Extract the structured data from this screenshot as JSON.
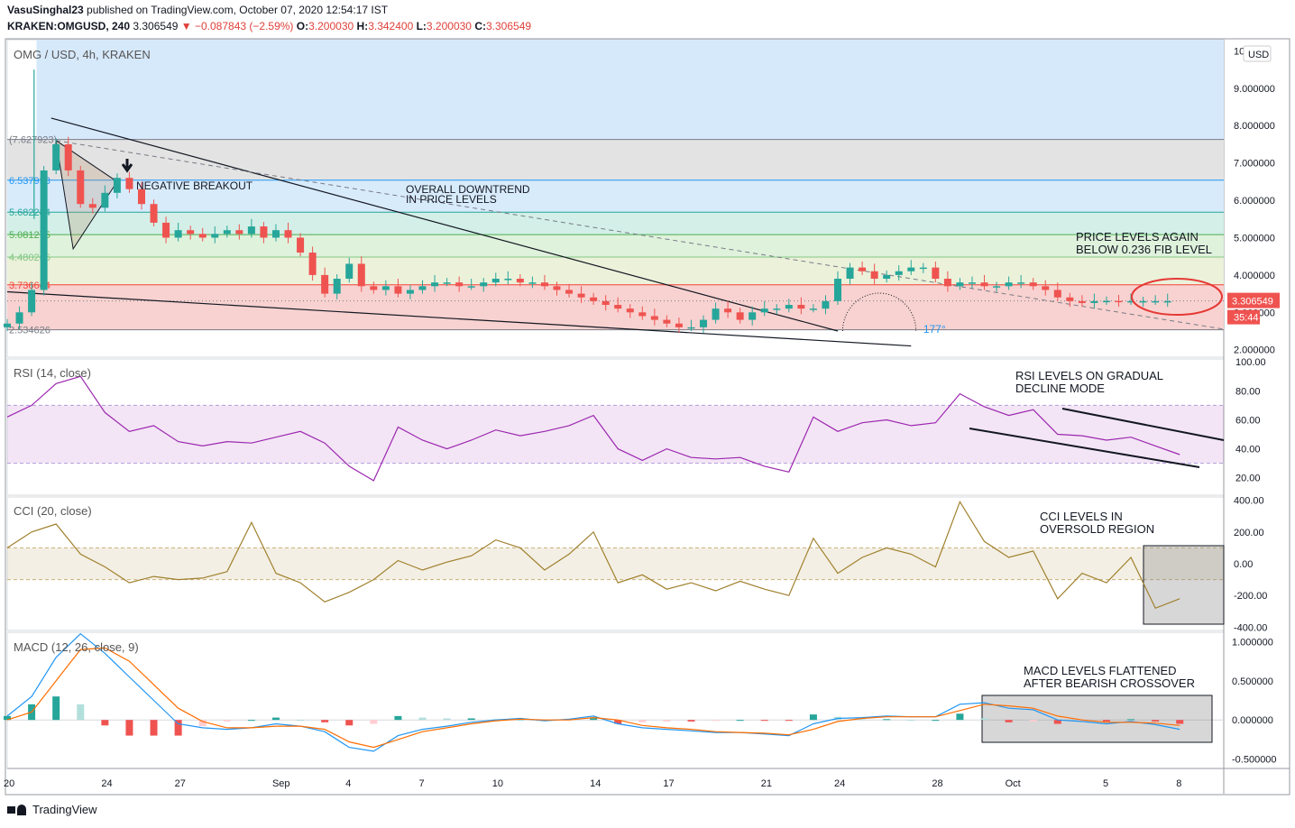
{
  "header": {
    "user": "VasuSinghal23",
    "published": "published on TradingView.com, October 07, 2020 12:54:17 IST",
    "symbol": "KRAKEN:OMGUSD, 240",
    "last": "3.306549",
    "change": "▼ −0.087843 (−2.59%)",
    "o_label": "O:",
    "o": "3.200030",
    "h_label": "H:",
    "h": "3.342400",
    "l_label": "L:",
    "l": "3.200030",
    "c_label": "C:",
    "c": "3.306549"
  },
  "footer": {
    "brand": "TradingView"
  },
  "colors": {
    "up": "#26a69a",
    "down": "#ef5350",
    "rsi": "#9c27b0",
    "cci": "#a0802d",
    "macd": "#2196f3",
    "signal": "#ff6d00",
    "annot": "#e53935"
  },
  "chart_data": [
    {
      "type": "line",
      "title": "OMG / USD, 4h, KRAKEN",
      "currency": "USD",
      "ylim": [
        1.8,
        10.3
      ],
      "ticks": [
        "10",
        "9.000000",
        "8.000000",
        "7.000000",
        "6.000000",
        "5.000000",
        "4.000000",
        "3.000000",
        "2.000000"
      ],
      "tick_values": [
        10,
        9,
        8,
        7,
        6,
        5,
        4,
        3,
        2
      ],
      "x_labels": [
        "20",
        "24",
        "27",
        "Sep",
        "4",
        "7",
        "10",
        "14",
        "17",
        "21",
        "24",
        "28",
        "Oct",
        "5",
        "8"
      ],
      "x_label_values": [
        0,
        4,
        7,
        11,
        14,
        17,
        20,
        24,
        27,
        31,
        34,
        38,
        41,
        45,
        48
      ],
      "fib_levels": [
        "(7.627923)",
        "6.537958",
        "5.682284",
        "5.081275",
        "4.480266",
        "3.736644",
        "2.534626"
      ],
      "fib_values": [
        7.627923,
        6.537958,
        5.682284,
        5.081275,
        4.480266,
        3.736644,
        2.534626
      ],
      "last_price": "3.306549",
      "countdown": "35:44",
      "angle_label": "177°",
      "x": [
        0,
        0.5,
        1,
        1.5,
        2,
        2.5,
        3,
        3.5,
        4,
        4.5,
        5,
        5.5,
        6,
        6.5,
        7,
        7.5,
        8,
        8.5,
        9,
        9.5,
        10,
        10.5,
        11,
        11.5,
        12,
        12.5,
        13,
        13.5,
        14,
        14.5,
        15,
        15.5,
        16,
        16.5,
        17,
        17.5,
        18,
        18.5,
        19,
        19.5,
        20,
        20.5,
        21,
        21.5,
        22,
        22.5,
        23,
        23.5,
        24,
        24.5,
        25,
        25.5,
        26,
        26.5,
        27,
        27.5,
        28,
        28.5,
        29,
        29.5,
        30,
        30.5,
        31,
        31.5,
        32,
        32.5,
        33,
        33.5,
        34,
        34.5,
        35,
        35.5,
        36,
        36.5,
        37,
        37.5,
        38,
        38.5,
        39,
        39.5,
        40,
        40.5,
        41,
        41.5,
        42,
        42.5,
        43,
        43.5,
        44,
        44.5,
        45,
        45.5,
        46,
        46.5,
        47,
        47.5
      ],
      "close": [
        2.7,
        3.0,
        3.6,
        6.8,
        7.5,
        6.8,
        5.9,
        5.8,
        6.2,
        6.6,
        6.3,
        5.9,
        5.4,
        5.0,
        5.2,
        5.1,
        5.0,
        5.1,
        5.2,
        5.1,
        5.3,
        5.0,
        5.2,
        5.0,
        4.6,
        4.0,
        3.5,
        3.9,
        4.3,
        3.7,
        3.6,
        3.7,
        3.5,
        3.6,
        3.7,
        3.8,
        3.8,
        3.7,
        3.7,
        3.8,
        3.9,
        3.9,
        3.8,
        3.8,
        3.7,
        3.6,
        3.5,
        3.4,
        3.3,
        3.2,
        3.1,
        3.0,
        2.9,
        2.8,
        2.7,
        2.6,
        2.6,
        2.8,
        3.1,
        3.0,
        2.8,
        3.0,
        3.1,
        3.1,
        3.2,
        3.1,
        3.1,
        3.3,
        3.9,
        4.2,
        4.1,
        3.9,
        4.0,
        4.1,
        4.2,
        4.2,
        3.9,
        3.7,
        3.8,
        3.8,
        3.7,
        3.7,
        3.8,
        3.8,
        3.7,
        3.6,
        3.4,
        3.3,
        3.25,
        3.3,
        3.306549,
        3.3,
        3.3,
        3.3,
        3.3,
        3.3
      ]
    },
    {
      "type": "line",
      "title": "RSI (14, close)",
      "ylim": [
        8,
        102
      ],
      "ticks": [
        "100.00",
        "80.00",
        "60.00",
        "40.00",
        "20.00"
      ],
      "tick_values": [
        100,
        80,
        60,
        40,
        20
      ],
      "band": [
        30,
        70
      ],
      "x": [
        0,
        1,
        2,
        3,
        4,
        5,
        6,
        7,
        8,
        9,
        10,
        11,
        12,
        13,
        14,
        15,
        16,
        17,
        18,
        19,
        20,
        21,
        22,
        23,
        24,
        25,
        26,
        27,
        28,
        29,
        30,
        31,
        32,
        33,
        34,
        35,
        36,
        37,
        38,
        39,
        40,
        41,
        42,
        43,
        44,
        45,
        46,
        47,
        48
      ],
      "values": [
        62,
        70,
        85,
        90,
        65,
        52,
        56,
        45,
        42,
        45,
        44,
        48,
        52,
        44,
        28,
        18,
        55,
        46,
        40,
        46,
        53,
        49,
        52,
        56,
        63,
        40,
        32,
        40,
        34,
        33,
        34,
        28,
        24,
        62,
        52,
        58,
        60,
        56,
        58,
        78,
        69,
        63,
        67,
        50,
        49,
        46,
        48,
        42,
        36
      ]
    },
    {
      "type": "line",
      "title": "CCI (20, close)",
      "ylim": [
        -420,
        420
      ],
      "ticks": [
        "400.00",
        "200.00",
        "0.00",
        "-200.00",
        "-400.00"
      ],
      "tick_values": [
        400,
        200,
        0,
        -200,
        -400
      ],
      "band": [
        -100,
        100
      ],
      "x": [
        0,
        1,
        2,
        3,
        4,
        5,
        6,
        7,
        8,
        9,
        10,
        11,
        12,
        13,
        14,
        15,
        16,
        17,
        18,
        19,
        20,
        21,
        22,
        23,
        24,
        25,
        26,
        27,
        28,
        29,
        30,
        31,
        32,
        33,
        34,
        35,
        36,
        37,
        38,
        39,
        40,
        41,
        42,
        43,
        44,
        45,
        46,
        47,
        48
      ],
      "values": [
        100,
        200,
        250,
        60,
        -20,
        -120,
        -80,
        -100,
        -90,
        -50,
        260,
        -60,
        -120,
        -240,
        -180,
        -100,
        20,
        -40,
        10,
        50,
        150,
        100,
        -40,
        60,
        200,
        -120,
        -70,
        -160,
        -120,
        -170,
        -110,
        -160,
        -200,
        160,
        -60,
        40,
        100,
        60,
        -20,
        390,
        140,
        40,
        80,
        -220,
        -60,
        -120,
        40,
        -280,
        -220
      ]
    },
    {
      "type": "bar",
      "title": "MACD (12, 26, close, 9)",
      "ylim": [
        -0.62,
        1.12
      ],
      "ticks": [
        "1.000000",
        "0.500000",
        "0.000000",
        "-0.500000"
      ],
      "tick_values": [
        1.0,
        0.5,
        0.0,
        -0.5
      ],
      "x": [
        0,
        1,
        2,
        3,
        4,
        5,
        6,
        7,
        8,
        9,
        10,
        11,
        12,
        13,
        14,
        15,
        16,
        17,
        18,
        19,
        20,
        21,
        22,
        23,
        24,
        25,
        26,
        27,
        28,
        29,
        30,
        31,
        32,
        33,
        34,
        35,
        36,
        37,
        38,
        39,
        40,
        41,
        42,
        43,
        44,
        45,
        46,
        47,
        48
      ],
      "series": [
        {
          "name": "MACD",
          "values": [
            0.05,
            0.3,
            0.8,
            1.1,
            0.85,
            0.55,
            0.25,
            -0.05,
            -0.1,
            -0.12,
            -0.1,
            -0.05,
            -0.08,
            -0.15,
            -0.35,
            -0.4,
            -0.2,
            -0.12,
            -0.08,
            -0.03,
            0.0,
            0.02,
            -0.01,
            0.01,
            0.05,
            -0.05,
            -0.1,
            -0.12,
            -0.14,
            -0.16,
            -0.16,
            -0.18,
            -0.2,
            -0.05,
            0.02,
            0.03,
            0.05,
            0.04,
            0.04,
            0.2,
            0.22,
            0.15,
            0.13,
            0.0,
            -0.02,
            -0.05,
            -0.02,
            -0.06,
            -0.12
          ]
        },
        {
          "name": "Signal",
          "values": [
            0.0,
            0.1,
            0.5,
            0.9,
            0.92,
            0.75,
            0.45,
            0.15,
            -0.02,
            -0.1,
            -0.1,
            -0.08,
            -0.08,
            -0.12,
            -0.28,
            -0.35,
            -0.25,
            -0.15,
            -0.1,
            -0.05,
            -0.01,
            0.01,
            0.0,
            0.0,
            0.03,
            0.0,
            -0.07,
            -0.1,
            -0.12,
            -0.15,
            -0.16,
            -0.17,
            -0.19,
            -0.12,
            -0.02,
            0.02,
            0.04,
            0.04,
            0.04,
            0.12,
            0.2,
            0.18,
            0.15,
            0.05,
            0.0,
            -0.03,
            -0.03,
            -0.04,
            -0.07
          ]
        },
        {
          "name": "Histogram",
          "values": [
            0.05,
            0.2,
            0.3,
            0.2,
            -0.07,
            -0.2,
            -0.2,
            -0.2,
            -0.08,
            -0.02,
            0.0,
            0.03,
            0.0,
            -0.03,
            -0.07,
            -0.05,
            0.05,
            0.03,
            0.02,
            0.02,
            0.01,
            0.01,
            -0.01,
            0.01,
            0.02,
            -0.05,
            -0.03,
            -0.02,
            -0.02,
            -0.01,
            0.0,
            -0.01,
            -0.01,
            0.07,
            0.04,
            0.01,
            0.01,
            0.0,
            0.0,
            0.08,
            0.02,
            -0.03,
            -0.02,
            -0.05,
            -0.02,
            -0.02,
            0.01,
            -0.02,
            -0.05
          ]
        }
      ]
    }
  ],
  "annotations": {
    "negative_breakout": "NEGATIVE BREAKOUT",
    "downtrend_1": "OVERALL DOWNTREND",
    "downtrend_2": "IN PRICE LEVELS",
    "fib_note_1": "PRICE LEVELS AGAIN",
    "fib_note_2": "BELOW 0.236 FIB LEVEL",
    "rsi_note_1": "RSI LEVELS ON GRADUAL",
    "rsi_note_2": "DECLINE MODE",
    "cci_note_1": "CCI LEVELS IN",
    "cci_note_2": "OVERSOLD REGION",
    "macd_note_1": "MACD LEVELS FLATTENED",
    "macd_note_2": "AFTER BEARISH CROSSOVER"
  }
}
